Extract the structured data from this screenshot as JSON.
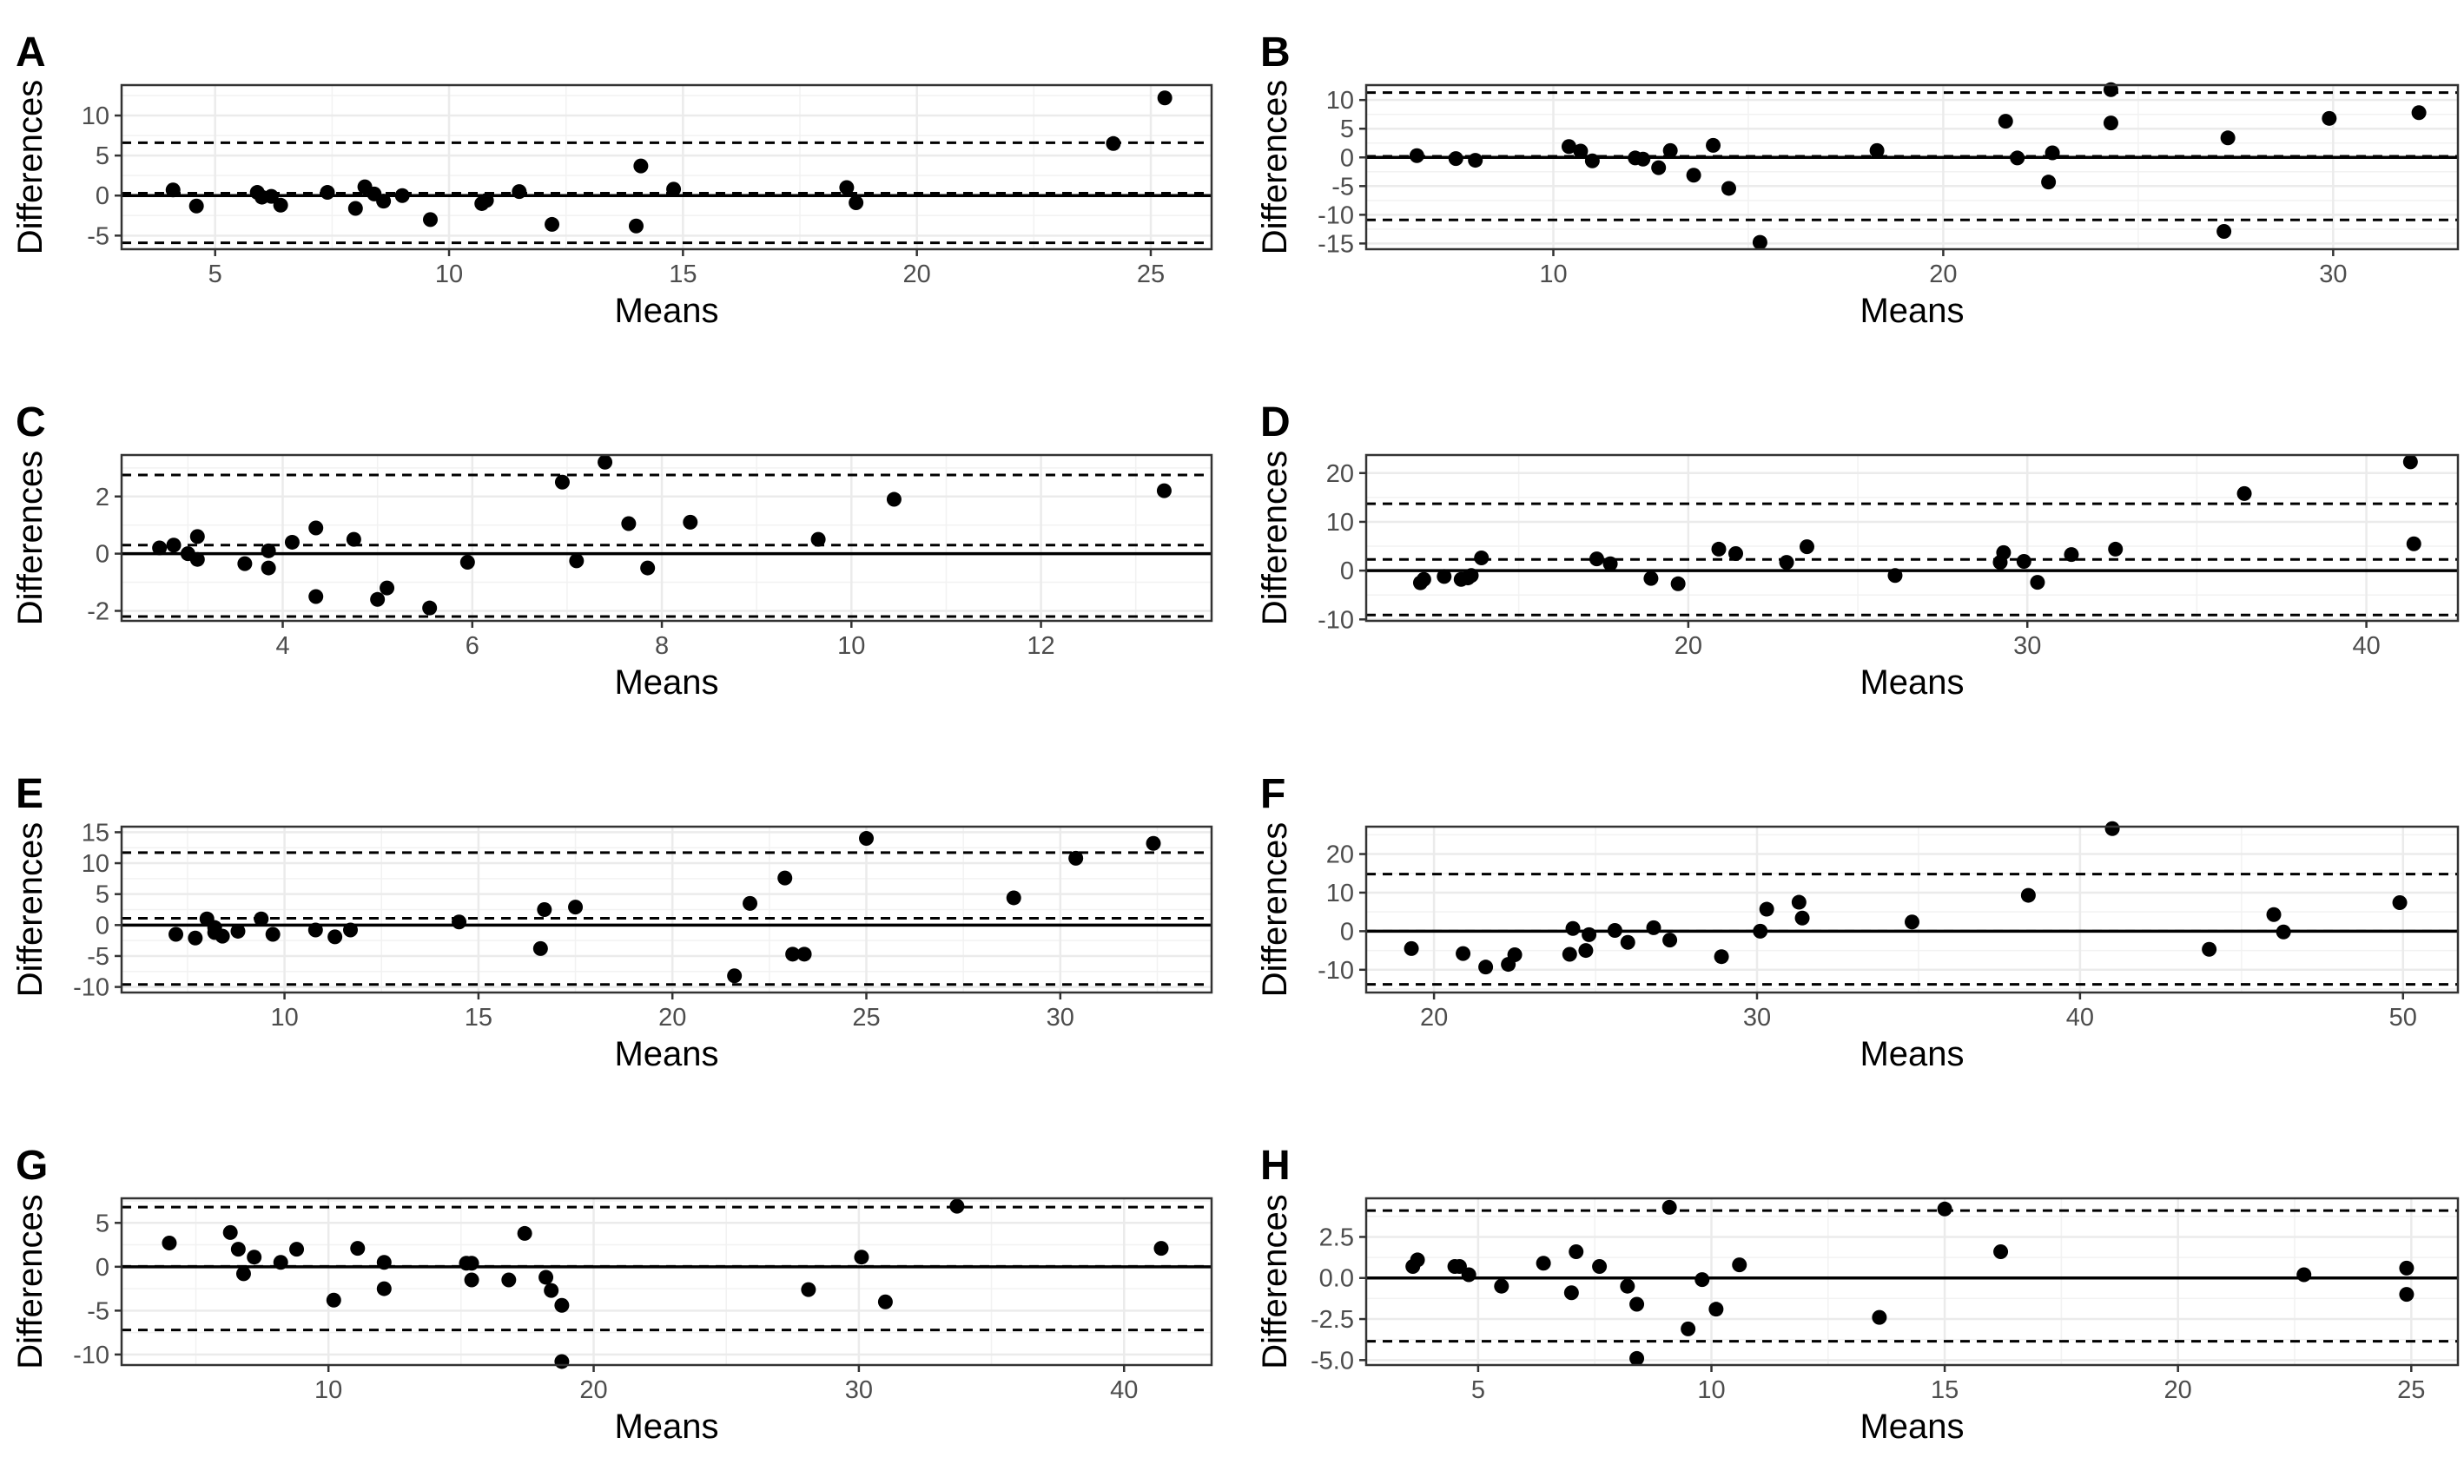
{
  "chart_data": [
    {
      "panel": "A",
      "type": "scatter",
      "xlabel": "Means",
      "ylabel": "Differences",
      "xlim": [
        3.0,
        26.3
      ],
      "ylim": [
        -6.7,
        13.8
      ],
      "xticks": [
        5,
        10,
        15,
        20,
        25
      ],
      "yticks": [
        -5,
        0,
        5,
        10
      ],
      "reference_lines": {
        "zero": 0,
        "mean_difference": 0.3,
        "limits_of_agreement": [
          -5.9,
          6.6
        ]
      },
      "points": [
        [
          4.1,
          0.7
        ],
        [
          4.6,
          -1.3
        ],
        [
          5.9,
          0.4
        ],
        [
          6.0,
          -0.2
        ],
        [
          6.2,
          -0.1
        ],
        [
          6.4,
          -1.2
        ],
        [
          7.4,
          0.4
        ],
        [
          8.0,
          -1.6
        ],
        [
          8.2,
          1.1
        ],
        [
          8.4,
          0.2
        ],
        [
          8.6,
          -0.7
        ],
        [
          9.0,
          0.0
        ],
        [
          9.6,
          -3.0
        ],
        [
          10.7,
          -1.0
        ],
        [
          10.8,
          -0.6
        ],
        [
          11.5,
          0.5
        ],
        [
          12.2,
          -3.6
        ],
        [
          14.0,
          -3.8
        ],
        [
          14.1,
          3.7
        ],
        [
          14.8,
          0.8
        ],
        [
          18.5,
          1.0
        ],
        [
          18.7,
          -0.9
        ],
        [
          24.2,
          6.5
        ],
        [
          25.3,
          12.2
        ]
      ]
    },
    {
      "panel": "B",
      "type": "scatter",
      "xlabel": "Means",
      "ylabel": "Differences",
      "xlim": [
        5.2,
        33.2
      ],
      "ylim": [
        -16.0,
        12.6
      ],
      "xticks": [
        10,
        20,
        30
      ],
      "yticks": [
        -15,
        -10,
        -5,
        0,
        5,
        10
      ],
      "reference_lines": {
        "zero": 0,
        "mean_difference": 0.2,
        "limits_of_agreement": [
          -10.9,
          11.3
        ]
      },
      "points": [
        [
          6.5,
          0.3
        ],
        [
          7.5,
          -0.2
        ],
        [
          8.0,
          -0.5
        ],
        [
          10.4,
          1.9
        ],
        [
          10.7,
          1.1
        ],
        [
          11.0,
          -0.6
        ],
        [
          12.1,
          -0.1
        ],
        [
          12.3,
          -0.3
        ],
        [
          12.7,
          -1.8
        ],
        [
          13.0,
          1.2
        ],
        [
          13.6,
          -3.1
        ],
        [
          14.1,
          2.1
        ],
        [
          14.5,
          -5.4
        ],
        [
          15.3,
          -14.8
        ],
        [
          18.3,
          1.2
        ],
        [
          21.6,
          6.3
        ],
        [
          21.9,
          -0.1
        ],
        [
          22.7,
          -4.3
        ],
        [
          22.8,
          0.8
        ],
        [
          24.3,
          11.8
        ],
        [
          24.3,
          6.0
        ],
        [
          27.3,
          3.4
        ],
        [
          27.2,
          -12.9
        ],
        [
          29.9,
          6.8
        ],
        [
          32.2,
          7.8
        ]
      ]
    },
    {
      "panel": "C",
      "type": "scatter",
      "xlabel": "Means",
      "ylabel": "Differences",
      "xlim": [
        2.3,
        13.8
      ],
      "ylim": [
        -2.35,
        3.45
      ],
      "xticks": [
        4,
        6,
        8,
        10,
        12
      ],
      "yticks": [
        -2,
        0,
        2
      ],
      "reference_lines": {
        "zero": 0,
        "mean_difference": 0.3,
        "limits_of_agreement": [
          -2.2,
          2.75
        ]
      },
      "points": [
        [
          2.7,
          0.2
        ],
        [
          2.85,
          0.3
        ],
        [
          3.0,
          0.0
        ],
        [
          3.1,
          0.6
        ],
        [
          3.1,
          -0.2
        ],
        [
          3.6,
          -0.35
        ],
        [
          3.85,
          0.1
        ],
        [
          3.85,
          -0.5
        ],
        [
          4.1,
          0.4
        ],
        [
          4.35,
          0.9
        ],
        [
          4.35,
          -1.5
        ],
        [
          4.75,
          0.5
        ],
        [
          5.0,
          -1.6
        ],
        [
          5.1,
          -1.2
        ],
        [
          5.55,
          -1.9
        ],
        [
          5.95,
          -0.3
        ],
        [
          6.95,
          2.5
        ],
        [
          7.1,
          -0.25
        ],
        [
          7.4,
          3.2
        ],
        [
          7.65,
          1.05
        ],
        [
          7.85,
          -0.5
        ],
        [
          8.3,
          1.1
        ],
        [
          9.65,
          0.5
        ],
        [
          10.45,
          1.9
        ],
        [
          13.3,
          2.2
        ]
      ]
    },
    {
      "panel": "D",
      "type": "scatter",
      "xlabel": "Means",
      "ylabel": "Differences",
      "xlim": [
        10.5,
        42.7
      ],
      "ylim": [
        -10.3,
        23.7
      ],
      "xticks": [
        20,
        30,
        40
      ],
      "yticks": [
        -10,
        0,
        10,
        20
      ],
      "reference_lines": {
        "zero": 0,
        "mean_difference": 2.3,
        "limits_of_agreement": [
          -9.1,
          13.7
        ]
      },
      "points": [
        [
          12.1,
          -2.5
        ],
        [
          12.2,
          -1.8
        ],
        [
          12.8,
          -1.2
        ],
        [
          13.3,
          -1.8
        ],
        [
          13.5,
          -1.5
        ],
        [
          13.6,
          -1.0
        ],
        [
          13.9,
          2.6
        ],
        [
          17.3,
          2.4
        ],
        [
          17.7,
          1.4
        ],
        [
          18.9,
          -1.6
        ],
        [
          19.7,
          -2.7
        ],
        [
          20.9,
          4.4
        ],
        [
          21.4,
          3.5
        ],
        [
          22.9,
          1.7
        ],
        [
          23.5,
          4.9
        ],
        [
          26.1,
          -1.0
        ],
        [
          29.2,
          1.7
        ],
        [
          29.3,
          3.7
        ],
        [
          29.9,
          1.9
        ],
        [
          30.3,
          -2.4
        ],
        [
          31.3,
          3.3
        ],
        [
          32.6,
          4.4
        ],
        [
          36.4,
          15.8
        ],
        [
          41.3,
          22.3
        ],
        [
          41.4,
          5.5
        ]
      ]
    },
    {
      "panel": "E",
      "type": "scatter",
      "xlabel": "Means",
      "ylabel": "Differences",
      "xlim": [
        5.8,
        33.9
      ],
      "ylim": [
        -10.9,
        15.9
      ],
      "xticks": [
        10,
        15,
        20,
        25,
        30
      ],
      "yticks": [
        -10,
        -5,
        0,
        5,
        10,
        15
      ],
      "reference_lines": {
        "zero": 0,
        "mean_difference": 1.1,
        "limits_of_agreement": [
          -9.6,
          11.7
        ]
      },
      "points": [
        [
          7.2,
          -1.5
        ],
        [
          7.7,
          -2.1
        ],
        [
          8.0,
          1.0
        ],
        [
          8.2,
          -1.2
        ],
        [
          8.2,
          -0.4
        ],
        [
          8.4,
          -1.8
        ],
        [
          8.8,
          -1.0
        ],
        [
          9.4,
          1.0
        ],
        [
          9.7,
          -1.5
        ],
        [
          10.8,
          -0.8
        ],
        [
          11.3,
          -1.9
        ],
        [
          11.7,
          -0.8
        ],
        [
          14.5,
          0.5
        ],
        [
          16.6,
          -3.8
        ],
        [
          16.7,
          2.5
        ],
        [
          17.5,
          2.9
        ],
        [
          21.6,
          -8.2
        ],
        [
          22.0,
          3.5
        ],
        [
          22.9,
          7.6
        ],
        [
          23.1,
          -4.7
        ],
        [
          23.4,
          -4.7
        ],
        [
          25.0,
          14.0
        ],
        [
          28.8,
          4.4
        ],
        [
          30.4,
          10.8
        ],
        [
          32.4,
          13.2
        ]
      ]
    },
    {
      "panel": "F",
      "type": "scatter",
      "xlabel": "Means",
      "ylabel": "Differences",
      "xlim": [
        17.9,
        51.7
      ],
      "ylim": [
        -15.9,
        27.1
      ],
      "xticks": [
        20,
        30,
        40,
        50
      ],
      "yticks": [
        -10,
        0,
        10,
        20
      ],
      "reference_lines": {
        "zero": 0,
        "mean_difference": 0,
        "limits_of_agreement": [
          -13.8,
          14.8
        ]
      },
      "points": [
        [
          19.3,
          -4.5
        ],
        [
          20.9,
          -5.8
        ],
        [
          21.6,
          -9.3
        ],
        [
          22.3,
          -8.6
        ],
        [
          22.5,
          -6.1
        ],
        [
          24.2,
          -6.0
        ],
        [
          24.3,
          0.7
        ],
        [
          24.7,
          -5.0
        ],
        [
          24.8,
          -0.9
        ],
        [
          25.6,
          0.2
        ],
        [
          26.0,
          -2.9
        ],
        [
          26.8,
          0.9
        ],
        [
          27.3,
          -2.3
        ],
        [
          28.9,
          -6.6
        ],
        [
          30.1,
          0.0
        ],
        [
          30.3,
          5.7
        ],
        [
          31.3,
          7.5
        ],
        [
          31.4,
          3.4
        ],
        [
          34.8,
          2.4
        ],
        [
          38.4,
          9.3
        ],
        [
          41.0,
          26.6
        ],
        [
          44.0,
          -4.7
        ],
        [
          46.0,
          4.3
        ],
        [
          46.3,
          -0.2
        ],
        [
          49.9,
          7.4
        ]
      ]
    },
    {
      "panel": "G",
      "type": "scatter",
      "xlabel": "Means",
      "ylabel": "Differences",
      "xlim": [
        2.2,
        43.3
      ],
      "ylim": [
        -11.2,
        7.8
      ],
      "xticks": [
        10,
        20,
        30,
        40
      ],
      "yticks": [
        -10,
        -5,
        0,
        5
      ],
      "reference_lines": {
        "zero": 0,
        "mean_difference": 0.05,
        "limits_of_agreement": [
          -7.2,
          6.8
        ]
      },
      "points": [
        [
          4.0,
          2.7
        ],
        [
          6.3,
          3.9
        ],
        [
          6.6,
          2.0
        ],
        [
          6.8,
          -0.8
        ],
        [
          7.2,
          1.1
        ],
        [
          8.2,
          0.5
        ],
        [
          8.8,
          2.0
        ],
        [
          10.2,
          -3.8
        ],
        [
          11.1,
          2.1
        ],
        [
          12.1,
          0.5
        ],
        [
          12.1,
          -2.5
        ],
        [
          15.2,
          0.4
        ],
        [
          15.4,
          0.4
        ],
        [
          15.4,
          -1.5
        ],
        [
          16.8,
          -1.5
        ],
        [
          17.4,
          3.8
        ],
        [
          18.2,
          -1.2
        ],
        [
          18.4,
          -2.7
        ],
        [
          18.8,
          -4.4
        ],
        [
          18.8,
          -10.8
        ],
        [
          28.1,
          -2.6
        ],
        [
          30.1,
          1.1
        ],
        [
          31.0,
          -4.0
        ],
        [
          33.7,
          6.9
        ],
        [
          41.4,
          2.1
        ]
      ]
    },
    {
      "panel": "H",
      "type": "scatter",
      "xlabel": "Means",
      "ylabel": "Differences",
      "xlim": [
        2.6,
        26.0
      ],
      "ylim": [
        -5.3,
        4.85
      ],
      "xticks": [
        5,
        10,
        15,
        20,
        25
      ],
      "yticks": [
        -5.0,
        -2.5,
        0.0,
        2.5
      ],
      "yticklabels": [
        "-5.0",
        "-2.5",
        "0.0",
        "2.5"
      ],
      "reference_lines": {
        "zero": 0,
        "mean_difference": 0,
        "limits_of_agreement": [
          -3.85,
          4.1
        ]
      },
      "points": [
        [
          3.6,
          0.7
        ],
        [
          3.7,
          1.1
        ],
        [
          4.5,
          0.7
        ],
        [
          4.6,
          0.7
        ],
        [
          4.8,
          0.2
        ],
        [
          5.5,
          -0.5
        ],
        [
          6.4,
          0.9
        ],
        [
          7.1,
          1.6
        ],
        [
          7.0,
          -0.9
        ],
        [
          7.6,
          0.7
        ],
        [
          8.2,
          -0.5
        ],
        [
          8.4,
          -1.6
        ],
        [
          8.4,
          -4.9
        ],
        [
          9.1,
          4.3
        ],
        [
          9.5,
          -3.1
        ],
        [
          9.8,
          -0.1
        ],
        [
          10.1,
          -1.9
        ],
        [
          10.6,
          0.8
        ],
        [
          13.6,
          -2.4
        ],
        [
          15.0,
          4.2
        ],
        [
          16.2,
          1.6
        ],
        [
          22.7,
          0.2
        ],
        [
          24.9,
          0.6
        ],
        [
          24.9,
          -1.0
        ]
      ]
    }
  ]
}
